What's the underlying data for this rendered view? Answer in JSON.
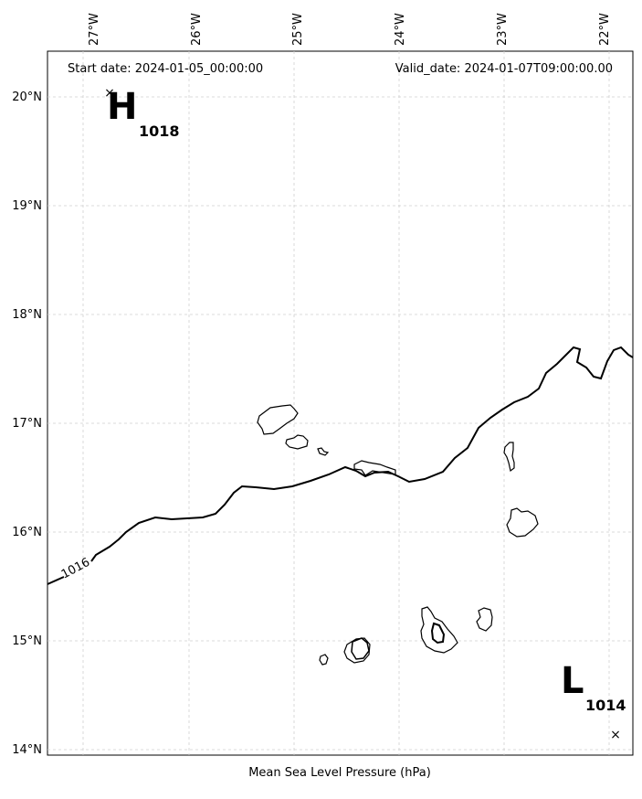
{
  "header": {
    "start_date": "Start date: 2024-01-05_00:00:00",
    "valid_date": "Valid_date: 2024-01-07T09:00:00.00"
  },
  "xlabel": "Mean Sea Level Pressure (hPa)",
  "longitude_labels": [
    "27°W",
    "26°W",
    "25°W",
    "24°W",
    "23°W",
    "22°W"
  ],
  "latitude_labels": [
    "20°N",
    "19°N",
    "18°N",
    "17°N",
    "16°N",
    "15°N",
    "14°N"
  ],
  "high": {
    "symbol": "H",
    "value": "1018"
  },
  "low": {
    "symbol": "L",
    "value": "1014"
  },
  "isobar": {
    "label": "1016"
  }
}
